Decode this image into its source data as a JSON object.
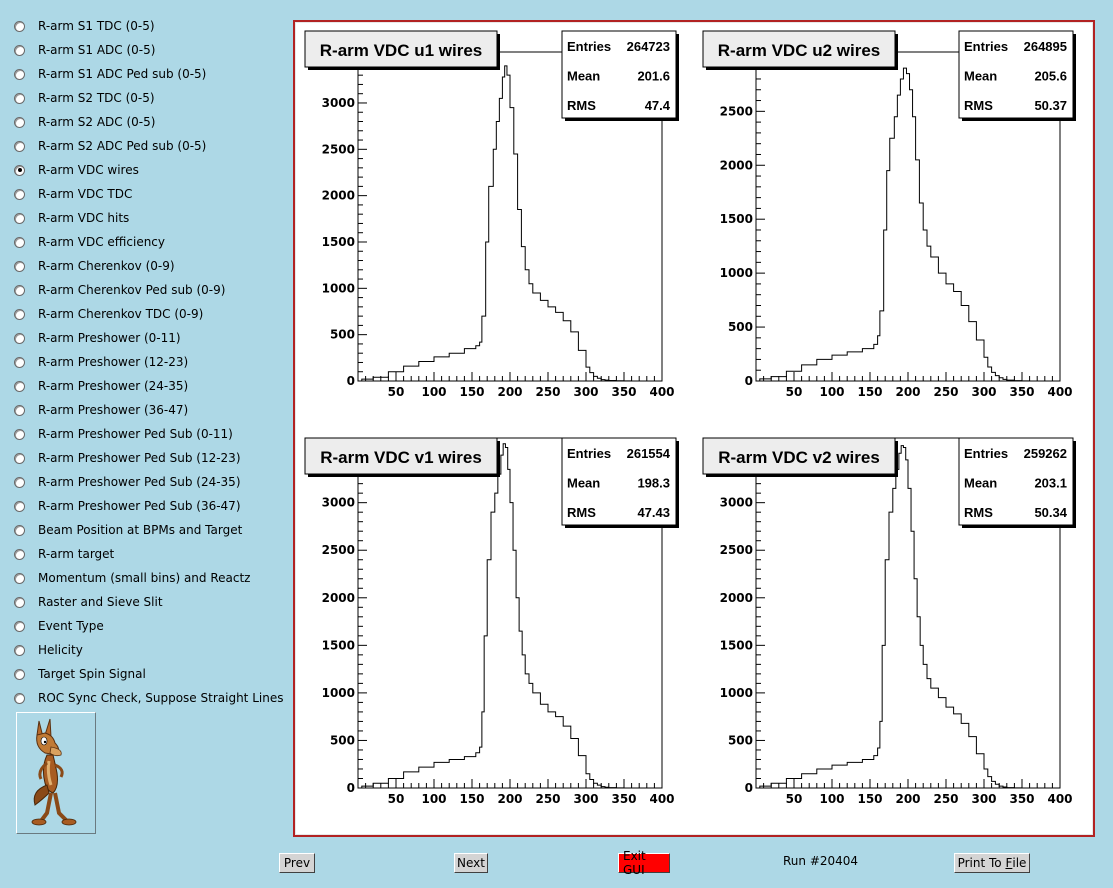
{
  "sidebar": {
    "selected_index": 6,
    "items": [
      "R-arm S1 TDC (0-5)",
      "R-arm S1 ADC (0-5)",
      "R-arm S1 ADC Ped sub (0-5)",
      "R-arm S2 TDC (0-5)",
      "R-arm S2 ADC (0-5)",
      "R-arm S2 ADC Ped sub (0-5)",
      "R-arm VDC wires",
      "R-arm VDC TDC",
      "R-arm VDC hits",
      "R-arm VDC efficiency",
      "R-arm Cherenkov (0-9)",
      "R-arm Cherenkov Ped sub (0-9)",
      "R-arm Cherenkov TDC (0-9)",
      "R-arm Preshower (0-11)",
      "R-arm Preshower (12-23)",
      "R-arm Preshower (24-35)",
      "R-arm Preshower (36-47)",
      "R-arm Preshower Ped Sub (0-11)",
      "R-arm Preshower Ped Sub (12-23)",
      "R-arm Preshower Ped Sub (24-35)",
      "R-arm Preshower Ped Sub (36-47)",
      "Beam Position at BPMs and Target",
      "R-arm target",
      "Momentum (small bins) and Reactz",
      "Raster and Sieve Slit",
      "Event Type",
      "Helicity",
      "Target Spin Signal",
      "ROC Sync Check, Suppose Straight Lines"
    ]
  },
  "buttons": {
    "prev": "Prev",
    "next": "Next",
    "exit": "Exit GUI",
    "print_pre": "Print To ",
    "print_u": "F",
    "print_post": "ile"
  },
  "run_label": "Run #20404",
  "colors": {
    "background": "#add8e6",
    "frame_border": "#b22222",
    "exit_button": "#ff0000"
  },
  "stats_labels": {
    "entries": "Entries",
    "mean": "Mean",
    "rms": "RMS"
  },
  "chart_data": [
    {
      "type": "line",
      "title": "R-arm VDC u1 wires",
      "stats": {
        "entries": "264723",
        "mean": "201.6",
        "rms": "47.4"
      },
      "xlim": [
        0,
        400
      ],
      "ylim": [
        0,
        3550
      ],
      "xticks": [
        50,
        100,
        150,
        200,
        250,
        300,
        350,
        400
      ],
      "yticks": [
        0,
        500,
        1000,
        1500,
        2000,
        2500,
        3000
      ],
      "x": [
        0,
        5,
        20,
        40,
        60,
        80,
        100,
        120,
        140,
        155,
        160,
        163,
        168,
        172,
        178,
        182,
        186,
        190,
        193,
        196,
        200,
        205,
        210,
        215,
        220,
        225,
        230,
        240,
        250,
        260,
        270,
        280,
        290,
        300,
        305,
        310,
        315,
        320,
        325,
        330,
        340,
        350,
        360,
        370
      ],
      "y": [
        0,
        20,
        40,
        100,
        160,
        210,
        260,
        300,
        350,
        380,
        420,
        700,
        1500,
        2100,
        2500,
        2800,
        3050,
        3280,
        3400,
        3300,
        2950,
        2450,
        1850,
        1450,
        1200,
        1050,
        950,
        870,
        800,
        740,
        650,
        530,
        330,
        150,
        90,
        50,
        30,
        15,
        10,
        5,
        3,
        1,
        0,
        0
      ]
    },
    {
      "type": "line",
      "title": "R-arm VDC u2 wires",
      "stats": {
        "entries": "264895",
        "mean": "205.6",
        "rms": "50.37"
      },
      "xlim": [
        0,
        400
      ],
      "ylim": [
        0,
        3050
      ],
      "xticks": [
        50,
        100,
        150,
        200,
        250,
        300,
        350,
        400
      ],
      "yticks": [
        0,
        500,
        1000,
        1500,
        2000,
        2500
      ],
      "x": [
        0,
        5,
        20,
        40,
        60,
        80,
        100,
        120,
        140,
        155,
        160,
        163,
        168,
        172,
        176,
        182,
        186,
        190,
        194,
        198,
        202,
        206,
        210,
        215,
        220,
        225,
        230,
        240,
        250,
        260,
        270,
        280,
        290,
        300,
        305,
        310,
        315,
        320,
        325,
        330,
        340,
        350,
        360,
        370
      ],
      "y": [
        0,
        20,
        40,
        90,
        150,
        200,
        240,
        270,
        300,
        340,
        420,
        650,
        1400,
        1950,
        2250,
        2450,
        2650,
        2800,
        2900,
        2850,
        2700,
        2450,
        2050,
        1650,
        1400,
        1250,
        1150,
        1000,
        900,
        830,
        700,
        550,
        380,
        220,
        130,
        80,
        50,
        30,
        15,
        8,
        3,
        1,
        0,
        0
      ]
    },
    {
      "type": "line",
      "title": "R-arm VDC v1 wires",
      "stats": {
        "entries": "261554",
        "mean": "198.3",
        "rms": "47.43"
      },
      "xlim": [
        0,
        400
      ],
      "ylim": [
        0,
        3680
      ],
      "xticks": [
        50,
        100,
        150,
        200,
        250,
        300,
        350,
        400
      ],
      "yticks": [
        0,
        500,
        1000,
        1500,
        2000,
        2500,
        3000,
        3500
      ],
      "x": [
        0,
        5,
        20,
        40,
        60,
        80,
        100,
        120,
        140,
        155,
        160,
        163,
        166,
        170,
        175,
        180,
        184,
        188,
        191,
        194,
        197,
        200,
        204,
        208,
        212,
        216,
        220,
        225,
        230,
        240,
        250,
        260,
        270,
        280,
        290,
        300,
        305,
        310,
        315,
        320,
        325,
        330,
        340,
        350,
        360,
        370
      ],
      "y": [
        0,
        20,
        50,
        100,
        170,
        220,
        270,
        300,
        330,
        370,
        430,
        800,
        1600,
        2400,
        2900,
        3100,
        3300,
        3500,
        3620,
        3580,
        3350,
        3000,
        2500,
        2000,
        1650,
        1400,
        1200,
        1100,
        1000,
        880,
        800,
        750,
        650,
        520,
        340,
        150,
        90,
        50,
        30,
        15,
        8,
        4,
        1,
        0,
        0,
        0
      ]
    },
    {
      "type": "line",
      "title": "R-arm VDC v2 wires",
      "stats": {
        "entries": "259262",
        "mean": "203.1",
        "rms": "50.34"
      },
      "xlim": [
        0,
        400
      ],
      "ylim": [
        0,
        3680
      ],
      "xticks": [
        50,
        100,
        150,
        200,
        250,
        300,
        350,
        400
      ],
      "yticks": [
        0,
        500,
        1000,
        1500,
        2000,
        2500,
        3000,
        3500
      ],
      "x": [
        0,
        5,
        20,
        40,
        60,
        80,
        100,
        120,
        140,
        155,
        160,
        163,
        166,
        170,
        175,
        180,
        184,
        188,
        191,
        194,
        197,
        200,
        204,
        208,
        212,
        216,
        220,
        225,
        230,
        240,
        250,
        260,
        270,
        280,
        290,
        300,
        305,
        310,
        315,
        320,
        325,
        330,
        340,
        350,
        360,
        370
      ],
      "y": [
        0,
        20,
        50,
        100,
        150,
        200,
        240,
        270,
        300,
        340,
        420,
        700,
        1500,
        2400,
        2900,
        3150,
        3350,
        3520,
        3600,
        3580,
        3450,
        3150,
        2700,
        2200,
        1800,
        1500,
        1300,
        1150,
        1050,
        950,
        850,
        780,
        680,
        540,
        360,
        200,
        120,
        70,
        40,
        20,
        10,
        4,
        1,
        0,
        0,
        0
      ]
    }
  ]
}
